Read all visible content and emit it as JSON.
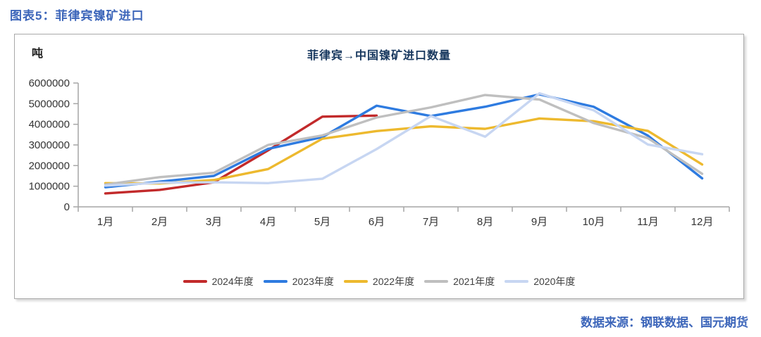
{
  "page": {
    "header_title": "图表5：菲律宾镍矿进口",
    "source_text": "数据来源：钢联数据、国元期货"
  },
  "chart_data": {
    "type": "line",
    "title": "菲律宾→中国镍矿进口数量",
    "unit_label": "吨",
    "categories": [
      "1月",
      "2月",
      "3月",
      "4月",
      "5月",
      "6月",
      "7月",
      "8月",
      "9月",
      "10月",
      "11月",
      "12月"
    ],
    "series": [
      {
        "name": "2024年度",
        "color": "#c22a2b",
        "values": [
          650000,
          820000,
          1190000,
          2740000,
          4370000,
          4420000
        ]
      },
      {
        "name": "2023年度",
        "color": "#2e7be0",
        "values": [
          950000,
          1220000,
          1500000,
          2810000,
          3380000,
          4900000,
          4400000,
          4850000,
          5450000,
          4850000,
          3450000,
          1380000
        ]
      },
      {
        "name": "2022年度",
        "color": "#edb92e",
        "values": [
          1150000,
          1130000,
          1300000,
          1830000,
          3300000,
          3670000,
          3900000,
          3780000,
          4280000,
          4150000,
          3680000,
          2050000
        ]
      },
      {
        "name": "2021年度",
        "color": "#bfbfbf",
        "values": [
          1080000,
          1440000,
          1650000,
          3000000,
          3460000,
          4330000,
          4820000,
          5420000,
          5200000,
          4060000,
          3330000,
          1600000
        ]
      },
      {
        "name": "2020年度",
        "color": "#c7d6f2",
        "values": [
          1030000,
          1170000,
          1190000,
          1150000,
          1360000,
          2800000,
          4400000,
          3400000,
          5500000,
          4680000,
          3020000,
          2550000
        ]
      }
    ],
    "ylim": [
      0,
      6000000
    ],
    "ytick_step": 1000000,
    "ytick_labels": [
      "0",
      "1000000",
      "2000000",
      "3000000",
      "4000000",
      "5000000",
      "6000000"
    ],
    "legend_position": "bottom",
    "grid": false,
    "axis_color": "#a6a6a6",
    "tick_text_color": "#333333"
  }
}
